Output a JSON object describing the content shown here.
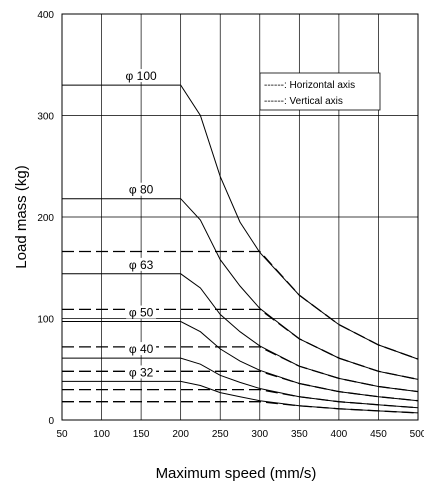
{
  "chart_data": {
    "type": "line",
    "xlabel": "Maximum speed (mm/s)",
    "ylabel": "Load mass (kg)",
    "xlim": [
      50,
      500
    ],
    "ylim": [
      0,
      400
    ],
    "x_ticks": [
      50,
      100,
      150,
      200,
      250,
      300,
      350,
      400,
      450,
      500
    ],
    "y_ticks": [
      0,
      100,
      200,
      300,
      400
    ],
    "grid": true,
    "legend_placement": "top-right",
    "legend": [
      {
        "label": "------: Horizontal axis",
        "style": "solid"
      },
      {
        "label": "------: Vertical axis",
        "style": "dashed"
      }
    ],
    "series": [
      {
        "name": "φ 100",
        "style": "solid",
        "label_at": [
          150,
          330
        ],
        "x": [
          50,
          200,
          225,
          250,
          275,
          300,
          350,
          400,
          450,
          500
        ],
        "y": [
          330,
          330,
          300,
          240,
          195,
          165,
          123,
          94,
          74,
          60
        ]
      },
      {
        "name": "φ 80",
        "style": "solid",
        "label_at": [
          150,
          218
        ],
        "x": [
          50,
          200,
          225,
          250,
          275,
          300,
          350,
          400,
          450,
          500
        ],
        "y": [
          218,
          218,
          197,
          158,
          132,
          110,
          80,
          61,
          48,
          40
        ]
      },
      {
        "name": "φ 63",
        "style": "solid",
        "label_at": [
          150,
          144
        ],
        "x": [
          50,
          200,
          225,
          250,
          275,
          300,
          350,
          400,
          450,
          500
        ],
        "y": [
          144,
          144,
          130,
          104,
          87,
          73,
          53,
          41,
          33,
          28
        ]
      },
      {
        "name": "φ 50",
        "style": "solid",
        "label_at": [
          150,
          97
        ],
        "x": [
          50,
          200,
          225,
          250,
          275,
          300,
          350,
          400,
          450,
          500
        ],
        "y": [
          97,
          97,
          87,
          70,
          58,
          49,
          36,
          28,
          23,
          19
        ]
      },
      {
        "name": "φ 40",
        "style": "solid",
        "label_at": [
          150,
          61
        ],
        "x": [
          50,
          200,
          225,
          250,
          275,
          300,
          350,
          400,
          450,
          500
        ],
        "y": [
          61,
          61,
          55,
          44,
          37,
          31,
          23,
          18,
          15,
          12
        ]
      },
      {
        "name": "φ 32",
        "style": "solid",
        "label_at": [
          150,
          38
        ],
        "x": [
          50,
          200,
          225,
          250,
          275,
          300,
          350,
          400,
          450,
          500
        ],
        "y": [
          38,
          38,
          34,
          27,
          23,
          19,
          14,
          11,
          9,
          7
        ]
      },
      {
        "name": "",
        "style": "dashed",
        "x": [
          50,
          300,
          350,
          400,
          450,
          500
        ],
        "y": [
          166,
          166,
          123,
          94,
          74,
          60
        ]
      },
      {
        "name": "",
        "style": "dashed",
        "x": [
          50,
          300,
          350,
          400,
          450,
          500
        ],
        "y": [
          109,
          109,
          80,
          61,
          48,
          40
        ]
      },
      {
        "name": "",
        "style": "dashed",
        "x": [
          50,
          300,
          350,
          400,
          450,
          500
        ],
        "y": [
          72,
          72,
          53,
          41,
          33,
          28
        ]
      },
      {
        "name": "",
        "style": "dashed",
        "x": [
          50,
          300,
          350,
          400,
          450,
          500
        ],
        "y": [
          48,
          48,
          36,
          28,
          23,
          19
        ]
      },
      {
        "name": "",
        "style": "dashed",
        "x": [
          50,
          300,
          350,
          400,
          450,
          500
        ],
        "y": [
          30,
          30,
          23,
          18,
          15,
          12
        ]
      },
      {
        "name": "",
        "style": "dashed",
        "x": [
          50,
          300,
          350,
          400,
          450,
          500
        ],
        "y": [
          18,
          18,
          14,
          11,
          9,
          7
        ]
      }
    ]
  }
}
